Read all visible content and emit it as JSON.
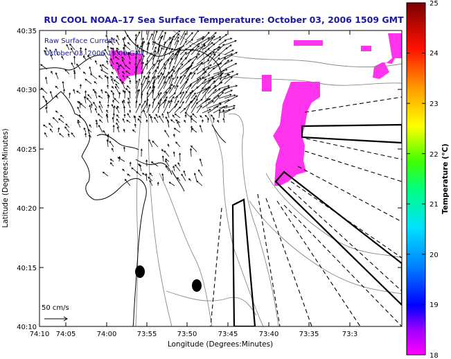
{
  "title": "RU COOL  NOAA–17  Sea Surface Temperature:  October 03, 2006 1509 GMT",
  "legend_note": {
    "line1": "Raw Surface Current",
    "line2": "October 03, 2006 15:00 GMT"
  },
  "scale_label": "50 cm/s",
  "axes": {
    "xlabel": "Longitude (Degrees:Minutes)",
    "ylabel": "Latitude (Degrees:Minutes)",
    "xticks": [
      "74:10",
      "74:05",
      "74:00",
      "73:55",
      "73:50",
      "73:45",
      "73:40",
      "73:35",
      "73:3"
    ],
    "yticks": [
      "40:35",
      "40:30",
      "40:25",
      "40:20",
      "40:15",
      "40:10"
    ]
  },
  "colorbar": {
    "label": "Temperature (°C)",
    "ticks": [
      "25",
      "24",
      "23",
      "22",
      "21",
      "20",
      "19",
      "18"
    ],
    "range": [
      18,
      25
    ]
  },
  "colors": {
    "title": "#1a1aa6",
    "sst_patch": "#ff33ee",
    "coast": "#000000",
    "bathymetry": "#888888"
  }
}
